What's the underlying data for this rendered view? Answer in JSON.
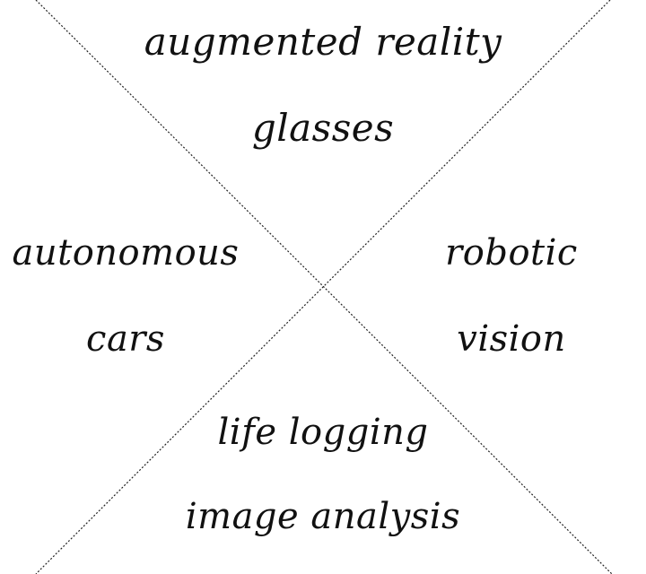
{
  "quadrants": {
    "top": {
      "line1": "augmented reality",
      "line2": "glasses"
    },
    "left": {
      "line1": "autonomous",
      "line2": "cars"
    },
    "right": {
      "line1": "robotic",
      "line2": "vision"
    },
    "bottom": {
      "line1": "life logging",
      "line2": "image analysis"
    }
  },
  "colors": {
    "background": "#ffffff",
    "text": "#111111",
    "lines": "#222222"
  }
}
